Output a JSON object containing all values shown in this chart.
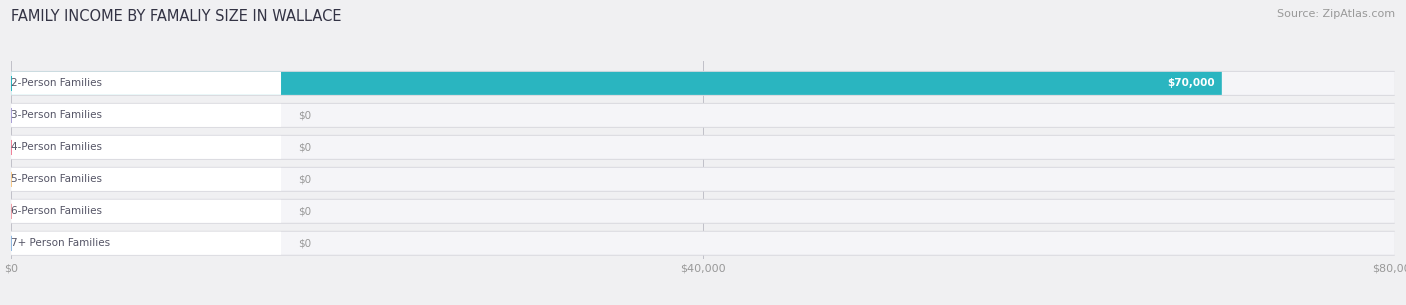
{
  "title": "FAMILY INCOME BY FAMALIY SIZE IN WALLACE",
  "source": "Source: ZipAtlas.com",
  "categories": [
    "2-Person Families",
    "3-Person Families",
    "4-Person Families",
    "5-Person Families",
    "6-Person Families",
    "7+ Person Families"
  ],
  "values": [
    70000,
    0,
    0,
    0,
    0,
    0
  ],
  "bar_colors": [
    "#2ab5c0",
    "#a89fd4",
    "#f0829a",
    "#f5c98a",
    "#f0a0a8",
    "#90b8e0"
  ],
  "max_value": 80000,
  "xticks": [
    0,
    40000,
    80000
  ],
  "xtick_labels": [
    "$0",
    "$40,000",
    "$80,000"
  ],
  "value_labels": [
    "$70,000",
    "$0",
    "$0",
    "$0",
    "$0",
    "$0"
  ],
  "background_color": "#f0f0f2",
  "bar_bg_color": "#e8e8ec",
  "title_fontsize": 10.5,
  "source_fontsize": 8,
  "label_fontsize": 7.5,
  "value_fontsize": 7.5,
  "figsize": [
    14.06,
    3.05
  ],
  "dpi": 100
}
